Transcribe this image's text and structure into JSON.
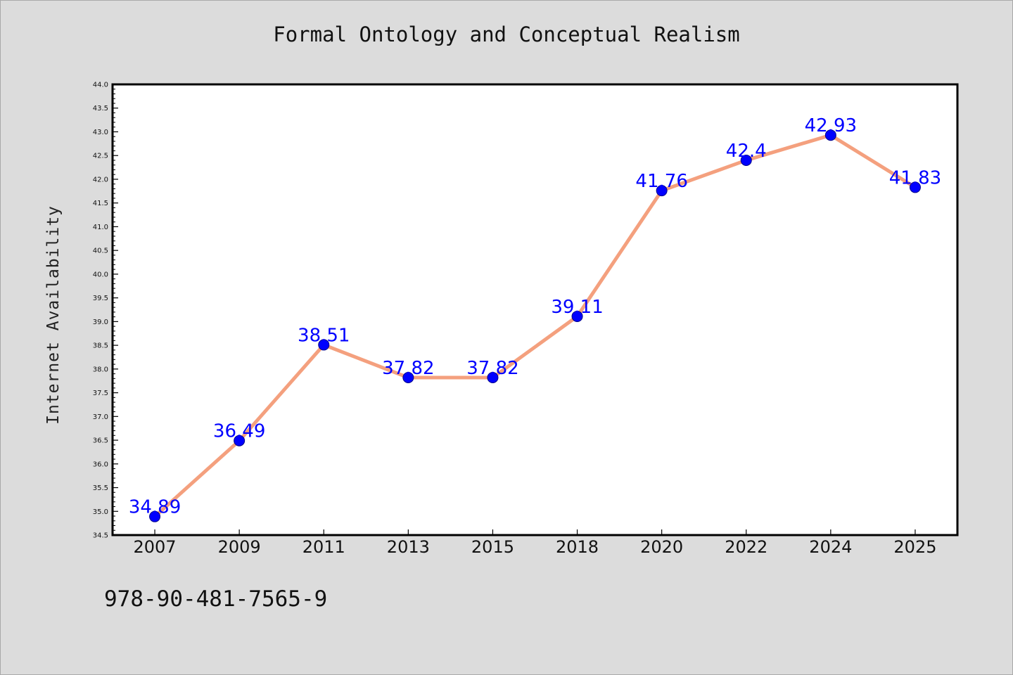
{
  "chart_data": {
    "type": "line",
    "title": "Formal Ontology and Conceptual Realism",
    "xlabel": "",
    "ylabel": "Internet Availability",
    "categories": [
      "2007",
      "2009",
      "2011",
      "2013",
      "2015",
      "2018",
      "2020",
      "2022",
      "2024",
      "2025"
    ],
    "values": [
      34.89,
      36.49,
      38.51,
      37.82,
      37.82,
      39.11,
      41.76,
      42.4,
      42.93,
      41.83
    ],
    "data_labels": [
      "34.89",
      "36.49",
      "38.51",
      "37.82",
      "37.82",
      "39.11",
      "41.76",
      "42.4",
      "42.93",
      "41.83"
    ],
    "ylim": [
      34.5,
      44.0
    ],
    "yticks": [
      "34.5",
      "35.0",
      "35.5",
      "36.0",
      "36.5",
      "37.0",
      "37.5",
      "38.0",
      "38.5",
      "39.0",
      "39.5",
      "40.0",
      "40.5",
      "41.0",
      "41.5",
      "42.0",
      "42.5",
      "43.0",
      "43.5",
      "44.0"
    ],
    "grid": false,
    "legend": "none",
    "colors": {
      "line": "#f4a07e",
      "marker": "#0000ff",
      "labels": "#0000ff",
      "background": "#dcdcdc",
      "plot_area": "#ffffff"
    }
  },
  "footer": {
    "isbn": "978-90-481-7565-9"
  }
}
